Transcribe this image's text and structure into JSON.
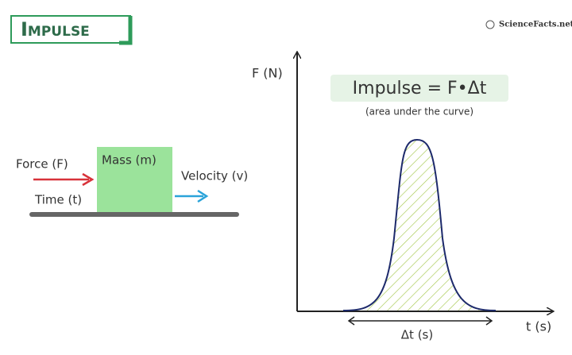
{
  "header": {
    "title": "Impulse",
    "logo": "ScienceFacts.net"
  },
  "left": {
    "force": "Force (F)",
    "mass": "Mass (m)",
    "velocity": "Velocity (v)",
    "time": "Time (t)"
  },
  "graph": {
    "y_label": "F (N)",
    "x_label": "t (s)",
    "formula": "Impulse = F•Δt",
    "formula_note": "(area under the curve)",
    "interval": "Δt (s)"
  }
}
